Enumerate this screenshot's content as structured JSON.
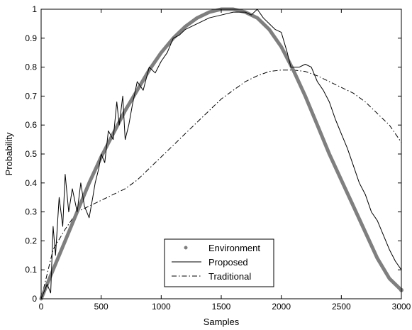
{
  "chart_data": {
    "type": "line",
    "xlabel": "Samples",
    "ylabel": "Probability",
    "xlim": [
      0,
      3000
    ],
    "ylim": [
      0,
      1
    ],
    "x_ticks": [
      0,
      500,
      1000,
      1500,
      2000,
      2500,
      3000
    ],
    "y_ticks": [
      0,
      0.1,
      0.2,
      0.3,
      0.4,
      0.5,
      0.6,
      0.7,
      0.8,
      0.9,
      1
    ],
    "grid": false,
    "legend_position": "bottom-center",
    "series": [
      {
        "name": "Environment",
        "style": "thick-gray",
        "color": "#7f7f7f",
        "x": [
          0,
          100,
          200,
          300,
          400,
          500,
          600,
          700,
          800,
          900,
          1000,
          1100,
          1200,
          1300,
          1400,
          1500,
          1550,
          1600,
          1700,
          1800,
          1900,
          2000,
          2100,
          2200,
          2300,
          2400,
          2500,
          2600,
          2700,
          2800,
          2900,
          3000
        ],
        "y": [
          0.0,
          0.1,
          0.2,
          0.3,
          0.4,
          0.49,
          0.57,
          0.65,
          0.72,
          0.79,
          0.85,
          0.9,
          0.94,
          0.97,
          0.99,
          1.0,
          1.0,
          1.0,
          0.99,
          0.97,
          0.93,
          0.87,
          0.79,
          0.7,
          0.6,
          0.5,
          0.41,
          0.32,
          0.23,
          0.14,
          0.07,
          0.03
        ]
      },
      {
        "name": "Proposed",
        "style": "thin-solid",
        "color": "#000000",
        "x": [
          0,
          50,
          80,
          100,
          120,
          150,
          180,
          200,
          230,
          260,
          300,
          330,
          360,
          400,
          430,
          450,
          480,
          500,
          530,
          560,
          600,
          630,
          650,
          680,
          700,
          730,
          760,
          800,
          850,
          900,
          950,
          1000,
          1050,
          1100,
          1150,
          1200,
          1300,
          1400,
          1500,
          1600,
          1700,
          1750,
          1800,
          1850,
          1900,
          1950,
          2000,
          2050,
          2080,
          2100,
          2150,
          2200,
          2250,
          2300,
          2350,
          2400,
          2450,
          2500,
          2550,
          2600,
          2650,
          2700,
          2750,
          2800,
          2850,
          2900,
          2950,
          3000
        ],
        "y": [
          0.0,
          0.05,
          0.02,
          0.25,
          0.15,
          0.35,
          0.25,
          0.43,
          0.3,
          0.38,
          0.3,
          0.4,
          0.32,
          0.28,
          0.35,
          0.4,
          0.45,
          0.5,
          0.47,
          0.58,
          0.55,
          0.68,
          0.6,
          0.7,
          0.55,
          0.6,
          0.67,
          0.75,
          0.72,
          0.8,
          0.78,
          0.82,
          0.85,
          0.9,
          0.91,
          0.93,
          0.95,
          0.97,
          0.98,
          0.99,
          0.99,
          0.98,
          1.0,
          0.97,
          0.95,
          0.93,
          0.92,
          0.85,
          0.8,
          0.8,
          0.8,
          0.81,
          0.8,
          0.75,
          0.72,
          0.68,
          0.62,
          0.57,
          0.52,
          0.46,
          0.4,
          0.36,
          0.3,
          0.27,
          0.22,
          0.17,
          0.13,
          0.1
        ]
      },
      {
        "name": "Traditional",
        "style": "dash-dot",
        "color": "#000000",
        "x": [
          0,
          100,
          200,
          300,
          400,
          500,
          600,
          700,
          800,
          900,
          1000,
          1100,
          1200,
          1300,
          1400,
          1500,
          1600,
          1700,
          1800,
          1900,
          2000,
          2100,
          2200,
          2300,
          2400,
          2500,
          2600,
          2700,
          2800,
          2900,
          3000
        ],
        "y": [
          0.0,
          0.17,
          0.24,
          0.3,
          0.32,
          0.34,
          0.36,
          0.38,
          0.41,
          0.45,
          0.49,
          0.53,
          0.57,
          0.61,
          0.65,
          0.69,
          0.72,
          0.75,
          0.77,
          0.785,
          0.79,
          0.79,
          0.785,
          0.77,
          0.75,
          0.73,
          0.71,
          0.68,
          0.64,
          0.6,
          0.54
        ]
      }
    ]
  }
}
